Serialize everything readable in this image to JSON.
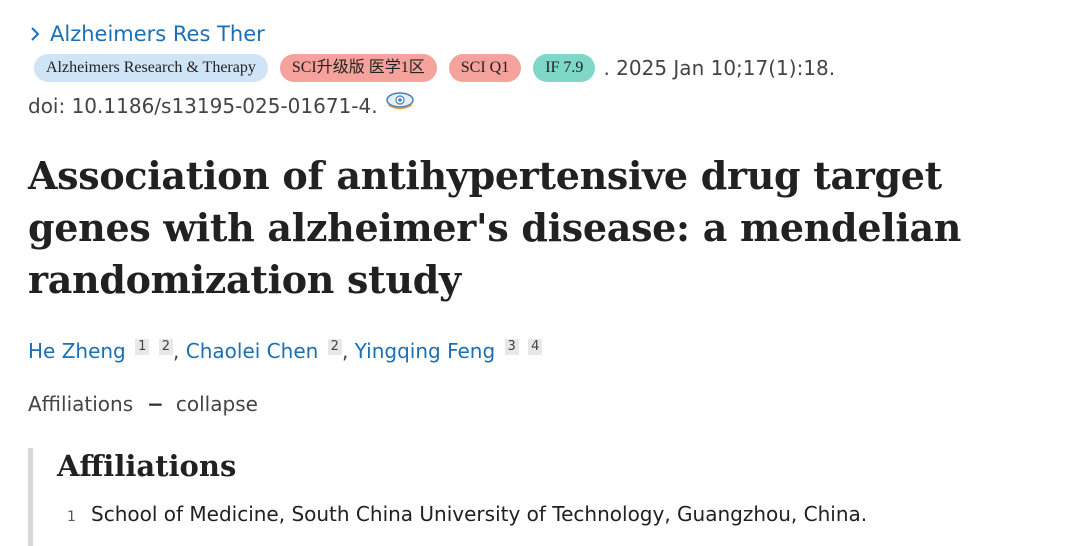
{
  "journal_link": {
    "label": "Alzheimers Res Ther",
    "icon": "chevron-right-icon"
  },
  "badges": [
    {
      "label": "Alzheimers Research & Therapy",
      "color": "#cfe4f7"
    },
    {
      "label": "SCI升级版 医学1区",
      "color": "#f4a29b"
    },
    {
      "label": "SCI Q1",
      "color": "#f4a29b"
    },
    {
      "label": "IF 7.9",
      "color": "#7fd7c7"
    }
  ],
  "pub_info": ". 2025 Jan 10;17(1):18.",
  "doi": {
    "text": "doi: 10.1186/s13195-025-01671-4.",
    "icon": "eye-icon"
  },
  "title": "Association of antihypertensive drug target genes with alzheimer's disease: a mendelian randomization study",
  "authors": [
    {
      "name": "He Zheng",
      "affs": [
        "1",
        "2"
      ]
    },
    {
      "name": "Chaolei Chen",
      "affs": [
        "2"
      ]
    },
    {
      "name": "Yingqing Feng",
      "affs": [
        "3",
        "4"
      ]
    }
  ],
  "author_separator": ", ",
  "affiliations_toggle": {
    "label": "Affiliations",
    "dash": "−",
    "action": "collapse"
  },
  "affiliations": {
    "heading": "Affiliations",
    "items": [
      {
        "num": "1",
        "text": "School of Medicine, South China University of Technology, Guangzhou, China."
      }
    ]
  },
  "colors": {
    "link": "#1a6fb5",
    "text": "#212121",
    "muted": "#444444"
  }
}
